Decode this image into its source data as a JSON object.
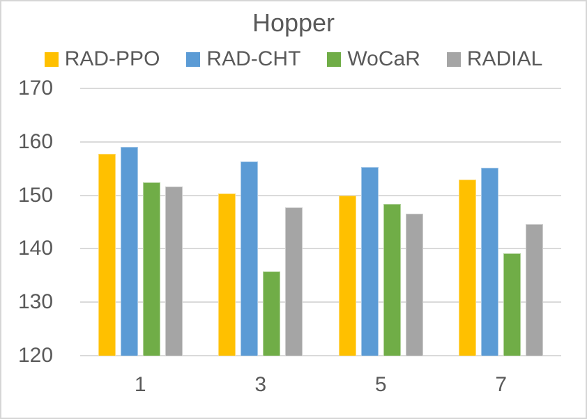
{
  "chart_data": {
    "type": "bar",
    "title": "Hopper",
    "categories": [
      "1",
      "3",
      "5",
      "7"
    ],
    "series": [
      {
        "name": "RAD-PPO",
        "color": "#FFC000",
        "values": [
          157.8,
          150.4,
          150.0,
          152.9
        ]
      },
      {
        "name": "RAD-CHT",
        "color": "#5B9BD5",
        "values": [
          159.1,
          156.3,
          155.3,
          155.2
        ]
      },
      {
        "name": "WoCaR",
        "color": "#70AD47",
        "values": [
          152.4,
          135.8,
          148.4,
          139.1
        ]
      },
      {
        "name": "RADIAL",
        "color": "#A5A5A5",
        "values": [
          151.6,
          147.8,
          146.5,
          144.6
        ]
      }
    ],
    "xlabel": "",
    "ylabel": "",
    "ylim": [
      120,
      170
    ],
    "yticks": [
      170,
      160,
      150,
      140,
      130,
      120
    ],
    "grid": true,
    "legend_position": "top",
    "text_color": "#595959",
    "gridline_color": "#DADADA"
  }
}
